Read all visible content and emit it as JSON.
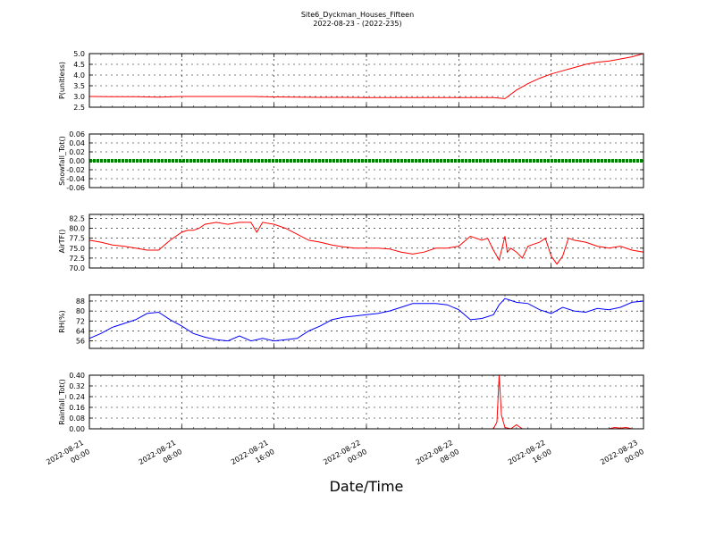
{
  "figure": {
    "title_line1": "Site6_Dyckman_Houses_Fifteen",
    "title_line2": "2022-08-23 - (2022-235)",
    "xlabel": "Date/Time",
    "x_ticks": [
      {
        "t": 0,
        "l1": "2022-08-21",
        "l2": "00:00"
      },
      {
        "t": 8,
        "l1": "2022-08-21",
        "l2": "08:00"
      },
      {
        "t": 16,
        "l1": "2022-08-21",
        "l2": "16:00"
      },
      {
        "t": 24,
        "l1": "2022-08-22",
        "l2": "00:00"
      },
      {
        "t": 32,
        "l1": "2022-08-22",
        "l2": "08:00"
      },
      {
        "t": 40,
        "l1": "2022-08-22",
        "l2": "16:00"
      },
      {
        "t": 48,
        "l1": "2022-08-23",
        "l2": "00:00"
      }
    ]
  },
  "chart_data": [
    {
      "type": "line",
      "ylabel": "P(unitless)",
      "color": "#ff0000",
      "ylim": [
        2.5,
        5.0
      ],
      "yticks": [
        "2.5",
        "3.0",
        "3.5",
        "4.0",
        "4.5",
        "5.0"
      ],
      "x": [
        0,
        2,
        4,
        6,
        8,
        10,
        12,
        14,
        16,
        18,
        20,
        22,
        24,
        26,
        28,
        30,
        32,
        34,
        35,
        36,
        37,
        38,
        39,
        40,
        41,
        42,
        43,
        44,
        45,
        46,
        47,
        48
      ],
      "y": [
        3.0,
        2.99,
        2.99,
        2.97,
        3.0,
        3.0,
        3.0,
        3.0,
        2.98,
        2.97,
        2.96,
        2.96,
        2.95,
        2.95,
        2.95,
        2.95,
        2.95,
        2.95,
        2.95,
        2.9,
        3.3,
        3.6,
        3.85,
        4.05,
        4.2,
        4.35,
        4.5,
        4.6,
        4.65,
        4.75,
        4.85,
        5.0
      ]
    },
    {
      "type": "line",
      "ylabel": "Snowfall_Tot()",
      "color": "#008000",
      "ylim": [
        -0.06,
        0.06
      ],
      "yticks": [
        "-0.06",
        "-0.04",
        "-0.02",
        "0.00",
        "0.02",
        "0.04",
        "0.06"
      ],
      "x": [
        0,
        48
      ],
      "y": [
        0,
        0
      ]
    },
    {
      "type": "line",
      "ylabel": "AirTF()",
      "color": "#ff0000",
      "ylim": [
        70.0,
        83.5
      ],
      "yticks": [
        "70.0",
        "72.5",
        "75.0",
        "77.5",
        "80.0",
        "82.5"
      ],
      "x": [
        0,
        1,
        2,
        3,
        4,
        5,
        6,
        7,
        8,
        8.5,
        9,
        9.5,
        10,
        11,
        12,
        13,
        14,
        14.5,
        15,
        16,
        17,
        18,
        19,
        20,
        21,
        22,
        23,
        24,
        25,
        26,
        27,
        28,
        29,
        30,
        31,
        32,
        33,
        33.5,
        34,
        34.5,
        35,
        35.5,
        36,
        36.2,
        36.5,
        37,
        37.5,
        38,
        38.5,
        39,
        39.5,
        40,
        40.5,
        41,
        41.5,
        42,
        43,
        44,
        45,
        46,
        47,
        48
      ],
      "y": [
        77.0,
        76.5,
        75.8,
        75.5,
        75.0,
        74.5,
        74.5,
        77.0,
        79.0,
        79.5,
        79.5,
        80.0,
        81.0,
        81.5,
        81.0,
        81.5,
        81.5,
        79.0,
        81.5,
        81.0,
        80.0,
        78.5,
        77.0,
        76.5,
        75.8,
        75.3,
        75.0,
        75.0,
        75.0,
        74.8,
        74.0,
        73.5,
        74.0,
        75.0,
        75.0,
        75.5,
        78.0,
        77.5,
        77.0,
        77.5,
        74.5,
        72.0,
        78.0,
        74.0,
        75.0,
        74.0,
        72.5,
        75.5,
        76.0,
        76.5,
        77.5,
        73.0,
        71.0,
        73.0,
        77.5,
        77.0,
        76.5,
        75.5,
        75.0,
        75.5,
        74.5,
        74.0
      ]
    },
    {
      "type": "line",
      "ylabel": "RH(%)",
      "color": "#0000ff",
      "ylim": [
        50,
        93
      ],
      "yticks": [
        "56",
        "64",
        "72",
        "80",
        "88"
      ],
      "x": [
        0,
        1,
        2,
        3,
        4,
        5,
        6,
        7,
        8,
        9,
        10,
        11,
        12,
        13,
        14,
        14.5,
        15,
        16,
        17,
        18,
        19,
        20,
        21,
        22,
        23,
        24,
        25,
        26,
        27,
        28,
        29,
        30,
        31,
        32,
        33,
        34,
        35,
        35.5,
        36,
        37,
        38,
        39,
        40,
        41,
        42,
        43,
        44,
        45,
        46,
        47,
        48
      ],
      "y": [
        58,
        62,
        67,
        70,
        73,
        78,
        79,
        73,
        68,
        62,
        59,
        57,
        56,
        60,
        56,
        57,
        58,
        56,
        57,
        58,
        64,
        68,
        73,
        75,
        76,
        77,
        78,
        80,
        83,
        86,
        86,
        86,
        85,
        81,
        73,
        74,
        77,
        85,
        90,
        87,
        86,
        81,
        78,
        83,
        80,
        79,
        82,
        81,
        83,
        87,
        88
      ]
    },
    {
      "type": "line",
      "ylabel": "Rainfall_Tot()",
      "color": "#ff0000",
      "ylim": [
        0.0,
        0.4
      ],
      "yticks": [
        "0.00",
        "0.08",
        "0.16",
        "0.24",
        "0.32",
        "0.40"
      ],
      "x": [
        0,
        35,
        35.3,
        35.5,
        35.7,
        36,
        36.5,
        37,
        37.5,
        38,
        38.5,
        45,
        45.5,
        46,
        46.5,
        47,
        48
      ],
      "y": [
        0,
        0,
        0.05,
        0.4,
        0.1,
        0.01,
        0,
        0.03,
        0,
        0,
        0,
        0,
        0.01,
        0.005,
        0.01,
        0,
        0
      ]
    }
  ]
}
